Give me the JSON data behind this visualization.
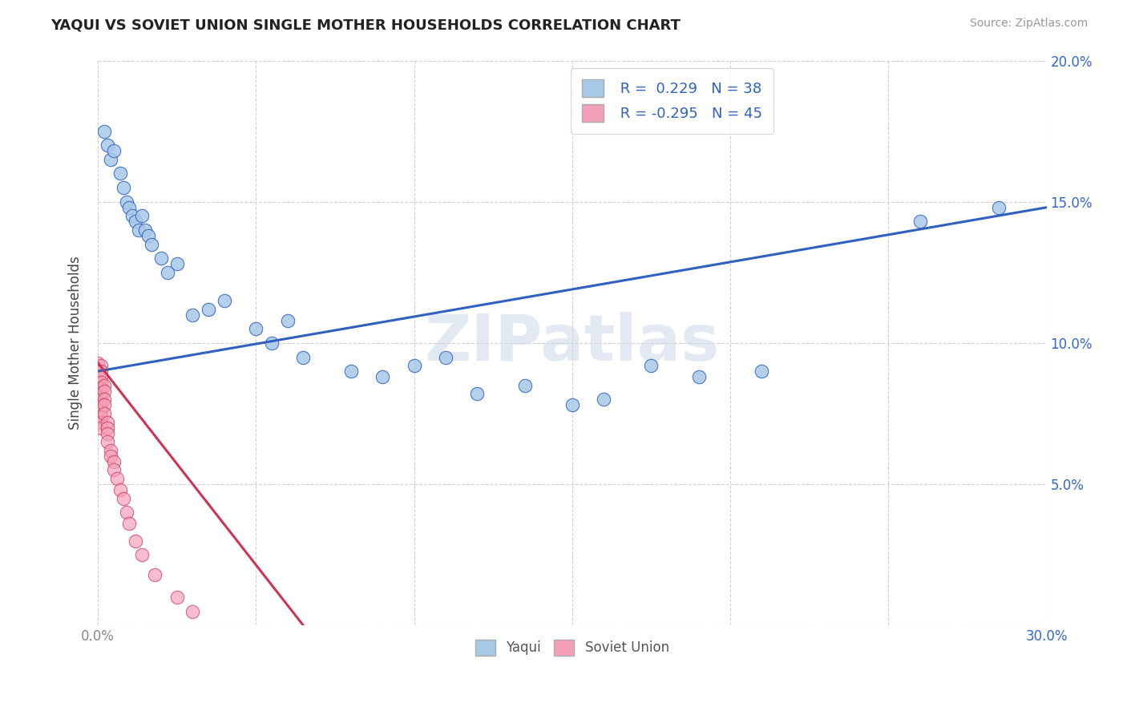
{
  "title": "YAQUI VS SOVIET UNION SINGLE MOTHER HOUSEHOLDS CORRELATION CHART",
  "source": "Source: ZipAtlas.com",
  "ylabel": "Single Mother Households",
  "xlim": [
    0.0,
    0.3
  ],
  "ylim": [
    0.0,
    0.2
  ],
  "xticks": [
    0.0,
    0.05,
    0.1,
    0.15,
    0.2,
    0.25,
    0.3
  ],
  "yticks": [
    0.0,
    0.05,
    0.1,
    0.15,
    0.2
  ],
  "color_yaqui": "#a8c8e8",
  "color_soviet": "#f4a0b8",
  "line_color_yaqui": "#3060c0",
  "line_color_soviet": "#cc3355",
  "background": "#ffffff",
  "yaqui_x": [
    0.002,
    0.003,
    0.004,
    0.005,
    0.007,
    0.008,
    0.009,
    0.01,
    0.011,
    0.012,
    0.013,
    0.014,
    0.015,
    0.016,
    0.017,
    0.02,
    0.022,
    0.025,
    0.03,
    0.035,
    0.04,
    0.05,
    0.055,
    0.06,
    0.065,
    0.08,
    0.09,
    0.1,
    0.11,
    0.12,
    0.135,
    0.15,
    0.16,
    0.175,
    0.19,
    0.21,
    0.26,
    0.285
  ],
  "yaqui_y": [
    0.175,
    0.17,
    0.165,
    0.168,
    0.16,
    0.155,
    0.15,
    0.148,
    0.145,
    0.143,
    0.14,
    0.145,
    0.14,
    0.138,
    0.135,
    0.13,
    0.125,
    0.128,
    0.11,
    0.112,
    0.115,
    0.105,
    0.1,
    0.108,
    0.095,
    0.09,
    0.088,
    0.092,
    0.095,
    0.082,
    0.085,
    0.078,
    0.08,
    0.092,
    0.088,
    0.09,
    0.143,
    0.148
  ],
  "soviet_x": [
    0.0,
    0.0,
    0.0,
    0.0,
    0.0,
    0.0,
    0.0,
    0.0,
    0.0,
    0.0,
    0.001,
    0.001,
    0.001,
    0.001,
    0.001,
    0.001,
    0.001,
    0.001,
    0.001,
    0.001,
    0.001,
    0.001,
    0.002,
    0.002,
    0.002,
    0.002,
    0.002,
    0.003,
    0.003,
    0.003,
    0.003,
    0.004,
    0.004,
    0.005,
    0.005,
    0.006,
    0.007,
    0.008,
    0.009,
    0.01,
    0.012,
    0.014,
    0.018,
    0.025,
    0.03
  ],
  "soviet_y": [
    0.093,
    0.09,
    0.088,
    0.086,
    0.084,
    0.082,
    0.08,
    0.078,
    0.076,
    0.074,
    0.092,
    0.09,
    0.088,
    0.086,
    0.084,
    0.082,
    0.08,
    0.078,
    0.076,
    0.074,
    0.072,
    0.07,
    0.085,
    0.083,
    0.08,
    0.078,
    0.075,
    0.072,
    0.07,
    0.068,
    0.065,
    0.062,
    0.06,
    0.058,
    0.055,
    0.052,
    0.048,
    0.045,
    0.04,
    0.036,
    0.03,
    0.025,
    0.018,
    0.01,
    0.005
  ]
}
